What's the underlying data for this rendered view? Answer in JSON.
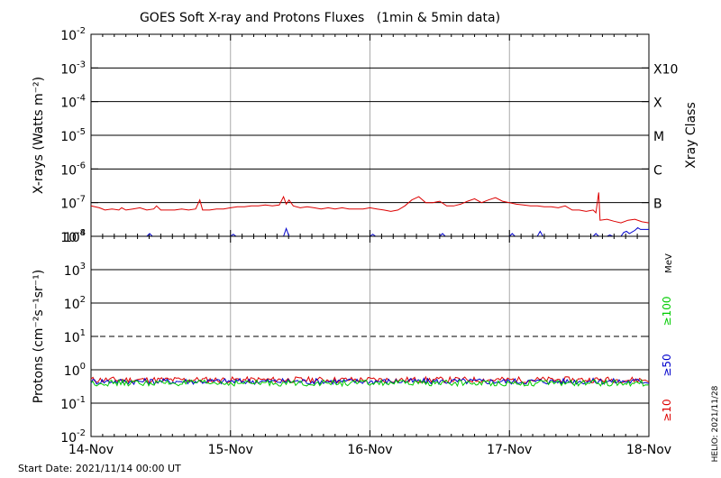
{
  "chart_data": [
    {
      "type": "line",
      "title": "GOES Soft X-ray and Protons Fluxes   (1min & 5min data)",
      "ylabel": "X-rays (Watts m⁻²)",
      "right_label": "Xray Class",
      "yscale": "log",
      "ylim": [
        1e-08,
        0.01
      ],
      "y_ticks": [
        {
          "value": 0.01,
          "base": "10",
          "exp": "-2"
        },
        {
          "value": 0.001,
          "base": "10",
          "exp": "-3"
        },
        {
          "value": 0.0001,
          "base": "10",
          "exp": "-4"
        },
        {
          "value": 1e-05,
          "base": "10",
          "exp": "-5"
        },
        {
          "value": 1e-06,
          "base": "10",
          "exp": "-6"
        },
        {
          "value": 1e-07,
          "base": "10",
          "exp": "-7"
        },
        {
          "value": 1e-08,
          "base": "10",
          "exp": "-8"
        }
      ],
      "gridlines": [
        0.001,
        0.0001,
        1e-05,
        1e-06,
        1e-07
      ],
      "class_labels": [
        {
          "label": "X10",
          "value": 0.001
        },
        {
          "label": "X",
          "value": 0.0001
        },
        {
          "label": "M",
          "value": 1e-05
        },
        {
          "label": "C",
          "value": 1e-06
        },
        {
          "label": "B",
          "value": 1e-07
        }
      ],
      "xlim": [
        "2021-11-14",
        "2021-11-18"
      ],
      "series": [
        {
          "color": "#dd0000",
          "x": [
            0,
            0.06,
            0.1,
            0.15,
            0.2,
            0.22,
            0.25,
            0.3,
            0.35,
            0.4,
            0.45,
            0.47,
            0.5,
            0.55,
            0.6,
            0.65,
            0.7,
            0.75,
            0.78,
            0.8,
            0.85,
            0.9,
            0.95,
            1.0,
            1.05,
            1.1,
            1.15,
            1.2,
            1.25,
            1.3,
            1.35,
            1.38,
            1.4,
            1.42,
            1.45,
            1.5,
            1.55,
            1.6,
            1.65,
            1.7,
            1.75,
            1.8,
            1.85,
            1.9,
            1.95,
            2.0,
            2.05,
            2.1,
            2.15,
            2.2,
            2.25,
            2.3,
            2.35,
            2.4,
            2.45,
            2.5,
            2.55,
            2.6,
            2.65,
            2.7,
            2.75,
            2.8,
            2.85,
            2.9,
            2.95,
            3.0,
            3.05,
            3.1,
            3.15,
            3.2,
            3.25,
            3.3,
            3.35,
            3.4,
            3.45,
            3.5,
            3.55,
            3.6,
            3.62,
            3.64,
            3.65,
            3.7,
            3.75,
            3.8,
            3.85,
            3.9,
            3.95,
            4.0
          ],
          "y": [
            8e-08,
            7e-08,
            6e-08,
            6.5e-08,
            6e-08,
            7e-08,
            6e-08,
            6.5e-08,
            7e-08,
            6e-08,
            6.5e-08,
            8e-08,
            6e-08,
            6e-08,
            6e-08,
            6.5e-08,
            6e-08,
            6.5e-08,
            1.2e-07,
            6e-08,
            6e-08,
            6.5e-08,
            6.5e-08,
            7e-08,
            7.5e-08,
            7.5e-08,
            8e-08,
            8e-08,
            8.5e-08,
            8e-08,
            8.5e-08,
            1.5e-07,
            9e-08,
            1.2e-07,
            8e-08,
            7e-08,
            7.5e-08,
            7e-08,
            6.5e-08,
            7e-08,
            6.5e-08,
            7e-08,
            6.5e-08,
            6.5e-08,
            6.5e-08,
            7e-08,
            6.5e-08,
            6e-08,
            5.5e-08,
            6e-08,
            8e-08,
            1.2e-07,
            1.5e-07,
            1e-07,
            1e-07,
            1.1e-07,
            8e-08,
            8e-08,
            9e-08,
            1.1e-07,
            1.3e-07,
            1e-07,
            1.2e-07,
            1.4e-07,
            1.1e-07,
            1e-07,
            9e-08,
            8.5e-08,
            8e-08,
            8e-08,
            7.5e-08,
            7.5e-08,
            7e-08,
            8e-08,
            6e-08,
            6e-08,
            5.5e-08,
            6e-08,
            5e-08,
            2e-07,
            3e-08,
            3.2e-08,
            2.8e-08,
            2.5e-08,
            3e-08,
            3.2e-08,
            2.7e-08,
            2.5e-08
          ]
        },
        {
          "color": "#0000cc",
          "x": [
            0,
            0.4,
            0.42,
            0.44,
            1.0,
            1.02,
            1.04,
            1.38,
            1.4,
            1.42,
            1.5,
            2.0,
            2.02,
            2.04,
            2.5,
            2.52,
            2.54,
            3.0,
            3.02,
            3.04,
            3.2,
            3.22,
            3.24,
            3.6,
            3.62,
            3.64,
            3.7,
            3.72,
            3.74,
            3.8,
            3.82,
            3.84,
            3.86,
            3.9,
            3.92,
            3.94,
            4.0
          ],
          "y": [
            1e-08,
            1e-08,
            1.2e-08,
            1e-08,
            1e-08,
            1.15e-08,
            1e-08,
            1e-08,
            1.7e-08,
            1e-08,
            1e-08,
            1e-08,
            1.15e-08,
            1e-08,
            1e-08,
            1.2e-08,
            1e-08,
            1e-08,
            1.2e-08,
            1e-08,
            1e-08,
            1.4e-08,
            1e-08,
            1e-08,
            1.2e-08,
            1e-08,
            1e-08,
            1.1e-08,
            1e-08,
            1e-08,
            1.3e-08,
            1.4e-08,
            1.2e-08,
            1.5e-08,
            1.8e-08,
            1.6e-08,
            1.6e-08
          ]
        }
      ]
    },
    {
      "type": "line",
      "ylabel": "Protons (cm⁻²s⁻¹sr⁻¹)",
      "yscale": "log",
      "ylim": [
        0.01,
        10000
      ],
      "y_ticks": [
        {
          "value": 10000,
          "base": "10",
          "exp": "4"
        },
        {
          "value": 1000,
          "base": "10",
          "exp": "3"
        },
        {
          "value": 100,
          "base": "10",
          "exp": "2"
        },
        {
          "value": 10,
          "base": "10",
          "exp": "1"
        },
        {
          "value": 1,
          "base": "10",
          "exp": "0"
        },
        {
          "value": 0.1,
          "base": "10",
          "exp": "-1"
        },
        {
          "value": 0.01,
          "base": "10",
          "exp": "-2"
        }
      ],
      "gridlines": [
        1000,
        100,
        1,
        0.1
      ],
      "dashed_line": 10,
      "unit_label": "MeV",
      "legend": [
        {
          "label": "≥100",
          "color": "#00cc00"
        },
        {
          "label": "≥50",
          "color": "#0000cc"
        },
        {
          "label": "≥10",
          "color": "#dd0000"
        }
      ],
      "xlim": [
        "2021-11-14",
        "2021-11-18"
      ],
      "series": [
        {
          "name": "≥10",
          "color": "#dd0000",
          "x": [
            0,
            4
          ],
          "y": [
            0.5,
            0.5
          ]
        },
        {
          "name": "≥50",
          "color": "#0000cc",
          "x": [
            0,
            4
          ],
          "y": [
            0.45,
            0.45
          ]
        },
        {
          "name": "≥100",
          "color": "#00cc00",
          "x": [
            0,
            4
          ],
          "y": [
            0.4,
            0.4
          ]
        }
      ]
    }
  ],
  "x_axis": {
    "ticks": [
      "14-Nov",
      "15-Nov",
      "16-Nov",
      "17-Nov",
      "18-Nov"
    ],
    "minor_per_day": 12
  },
  "footer": {
    "start_date": "Start Date: 2021/11/14 00:00 UT",
    "side_stamp": "HELIO: 2021/11/28"
  }
}
